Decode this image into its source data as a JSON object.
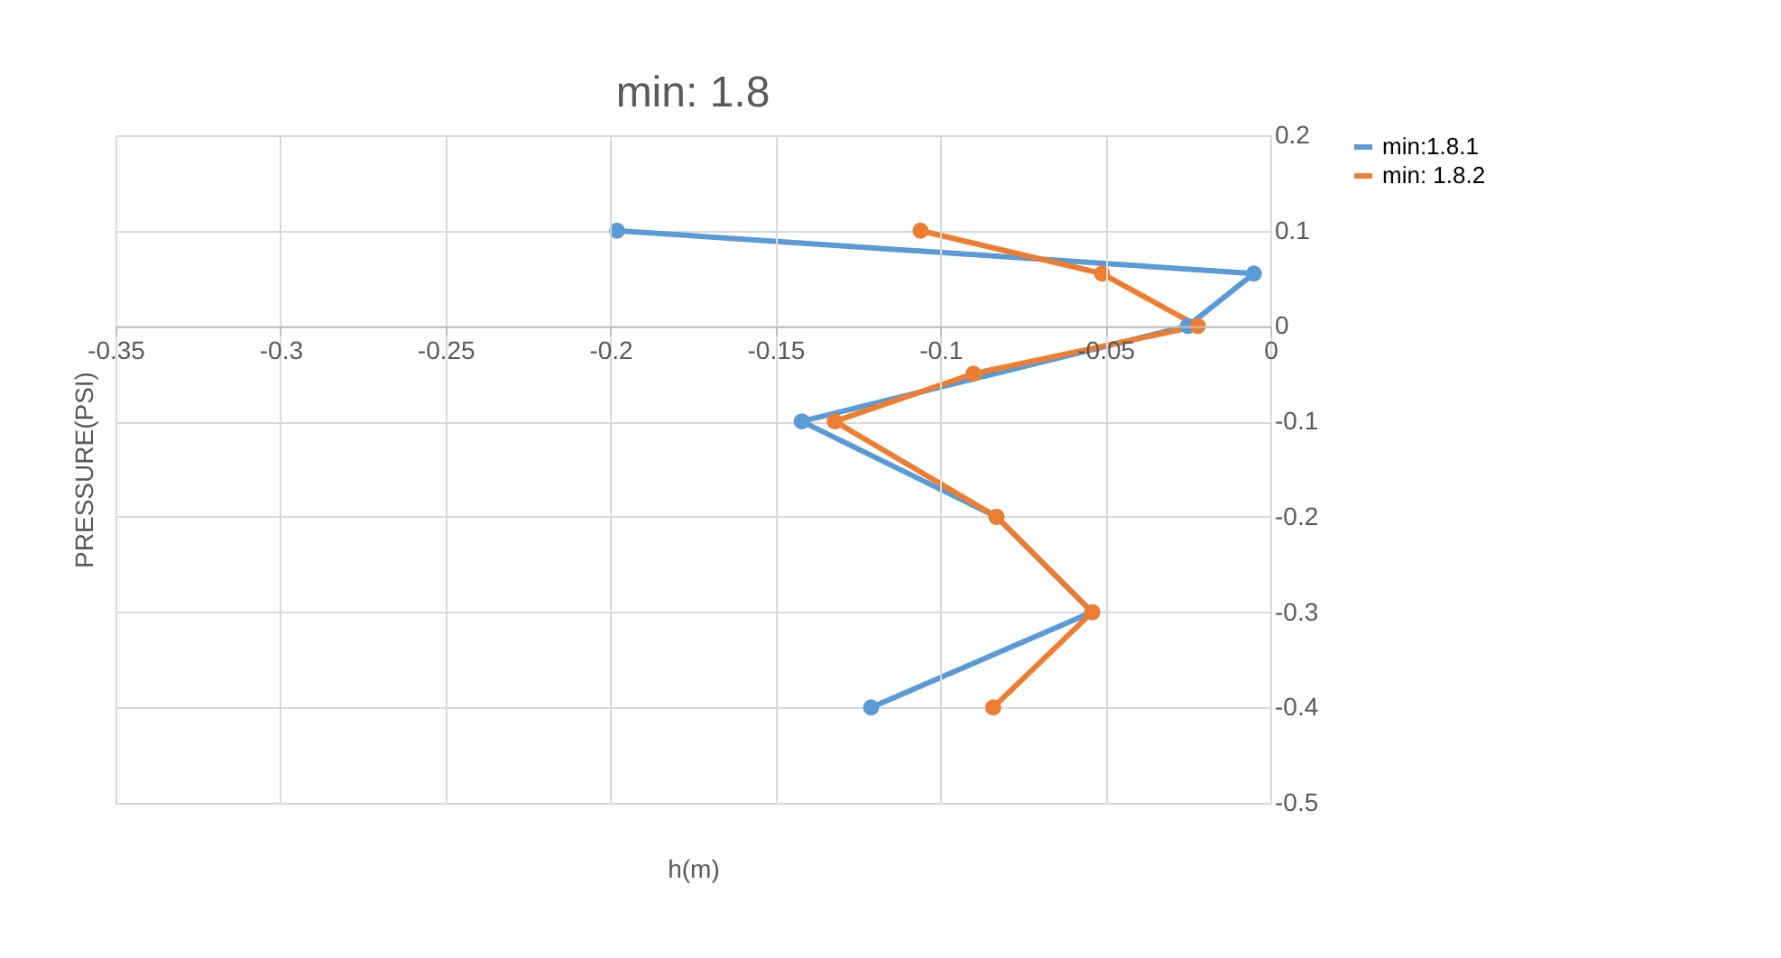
{
  "chart_data": {
    "type": "line",
    "title": "min: 1.8",
    "xlabel": "h(m)",
    "ylabel": "PRESSURE(PSI)",
    "series": [
      {
        "name": "min:1.8.1",
        "color": "#5b9bd5",
        "x": [
          -0.198,
          -0.005,
          -0.025,
          -0.142,
          -0.083,
          -0.054,
          -0.121
        ],
        "values": [
          0.1,
          0.055,
          0.0,
          -0.1,
          -0.2,
          -0.3,
          -0.4
        ]
      },
      {
        "name": "min: 1.8.2",
        "color": "#ed7d31",
        "x": [
          -0.106,
          -0.051,
          -0.022,
          -0.09,
          -0.132,
          -0.083,
          -0.054,
          -0.084
        ],
        "values": [
          0.1,
          0.055,
          0.0,
          -0.05,
          -0.1,
          -0.2,
          -0.3,
          -0.4
        ]
      }
    ],
    "xlim": [
      -0.35,
      0
    ],
    "xticks": [
      -0.35,
      -0.3,
      -0.25,
      -0.2,
      -0.15,
      -0.1,
      -0.05,
      0
    ],
    "ylim": [
      -0.5,
      0.2
    ],
    "yticks": [
      -0.5,
      -0.4,
      -0.3,
      -0.2,
      -0.1,
      0,
      0.1,
      0.2
    ],
    "grid": true,
    "legend": "right",
    "marker": "circle",
    "line_style": "solid"
  }
}
